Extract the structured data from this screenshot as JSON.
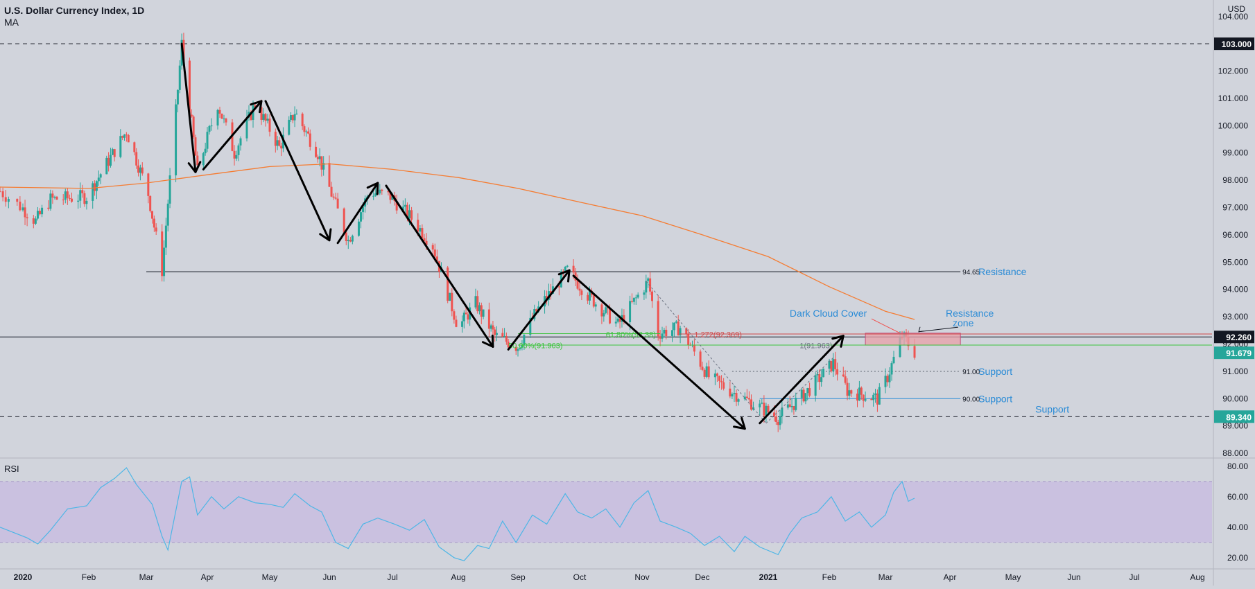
{
  "header": {
    "title": "U.S. Dollar Currency Index, 1D",
    "indicator": "MA",
    "currency": "USD"
  },
  "colors": {
    "background": "#d1d4dc",
    "up": "#26a69a",
    "down": "#ef5350",
    "ma": "#f57c32",
    "rsi_line": "#4db6e6",
    "rsi_band": "#c9bde0",
    "annotation_blue": "#2a8bd6",
    "fib_green": "#3cc43c",
    "fib_red": "#d04848",
    "resistance_zone": "#e8a0a8"
  },
  "chart_data": [
    {
      "type": "candlestick",
      "title": "U.S. Dollar Currency Index, 1D",
      "y_axis": {
        "ylim": [
          87.9,
          104.4
        ],
        "tick_labels": [
          "104.000",
          "103.000",
          "102.000",
          "101.000",
          "100.000",
          "99.000",
          "98.000",
          "97.000",
          "96.000",
          "95.000",
          "94.000",
          "93.000",
          "92.000",
          "91.000",
          "90.000",
          "89.000",
          "88.000"
        ],
        "ticks": [
          104,
          103,
          102,
          101,
          100,
          99,
          98,
          97,
          96,
          95,
          94,
          93,
          92,
          91,
          90,
          89,
          88
        ]
      },
      "x_axis": {
        "tick_labels": [
          "2020",
          "Feb",
          "Mar",
          "Apr",
          "May",
          "Jun",
          "Jul",
          "Aug",
          "Sep",
          "Oct",
          "Nov",
          "Dec",
          "2021",
          "Feb",
          "Mar",
          "Apr",
          "May",
          "Jun",
          "Jul",
          "Aug"
        ],
        "tick_dates": [
          "2020-01-01",
          "2020-02-01",
          "2020-03-01",
          "2020-04-01",
          "2020-05-01",
          "2020-06-01",
          "2020-07-01",
          "2020-08-01",
          "2020-09-01",
          "2020-10-01",
          "2020-11-01",
          "2020-12-01",
          "2021-01-01",
          "2021-02-01",
          "2021-03-01",
          "2021-04-01",
          "2021-05-01",
          "2021-06-01",
          "2021-07-01",
          "2021-08-01"
        ]
      },
      "price_path": [
        [
          "2019-12-24",
          97.6
        ],
        [
          "2020-01-07",
          96.5
        ],
        [
          "2020-01-14",
          97.3
        ],
        [
          "2020-01-31",
          97.4
        ],
        [
          "2020-02-20",
          99.8
        ],
        [
          "2020-03-02",
          97.5
        ],
        [
          "2020-03-09",
          94.7
        ],
        [
          "2020-03-19",
          103.0
        ],
        [
          "2020-03-27",
          98.3
        ],
        [
          "2020-04-06",
          100.8
        ],
        [
          "2020-04-14",
          99.0
        ],
        [
          "2020-04-24",
          100.8
        ],
        [
          "2020-05-06",
          99.2
        ],
        [
          "2020-05-14",
          100.5
        ],
        [
          "2020-05-26",
          99.0
        ],
        [
          "2020-06-10",
          95.8
        ],
        [
          "2020-06-20",
          97.6
        ],
        [
          "2020-06-30",
          97.4
        ],
        [
          "2020-07-10",
          96.6
        ],
        [
          "2020-07-20",
          95.6
        ],
        [
          "2020-08-01",
          92.6
        ],
        [
          "2020-08-10",
          93.5
        ],
        [
          "2020-08-20",
          92.3
        ],
        [
          "2020-09-01",
          91.9
        ],
        [
          "2020-09-10",
          93.2
        ],
        [
          "2020-09-25",
          94.7
        ],
        [
          "2020-10-05",
          93.8
        ],
        [
          "2020-10-20",
          92.7
        ],
        [
          "2020-11-04",
          94.3
        ],
        [
          "2020-11-09",
          92.4
        ],
        [
          "2020-11-20",
          92.6
        ],
        [
          "2020-12-04",
          90.8
        ],
        [
          "2020-12-16",
          90.2
        ],
        [
          "2021-01-06",
          89.3
        ],
        [
          "2021-01-20",
          90.2
        ],
        [
          "2021-02-03",
          91.3
        ],
        [
          "2021-02-10",
          90.3
        ],
        [
          "2021-02-25",
          90.0
        ],
        [
          "2021-03-02",
          90.8
        ],
        [
          "2021-03-09",
          92.3
        ],
        [
          "2021-03-15",
          91.7
        ]
      ],
      "moving_average": [
        [
          "2019-12-24",
          97.75
        ],
        [
          "2020-02-01",
          97.7
        ],
        [
          "2020-03-01",
          97.9
        ],
        [
          "2020-04-01",
          98.2
        ],
        [
          "2020-05-01",
          98.5
        ],
        [
          "2020-06-01",
          98.6
        ],
        [
          "2020-07-01",
          98.4
        ],
        [
          "2020-08-01",
          98.1
        ],
        [
          "2020-09-01",
          97.7
        ],
        [
          "2020-10-01",
          97.2
        ],
        [
          "2020-11-01",
          96.7
        ],
        [
          "2020-12-01",
          96.0
        ],
        [
          "2021-01-01",
          95.2
        ],
        [
          "2021-02-01",
          94.1
        ],
        [
          "2021-03-01",
          93.2
        ],
        [
          "2021-03-15",
          92.9
        ]
      ],
      "horizontal_levels": [
        {
          "value": 103.0,
          "style": "dashed",
          "label": "103.000"
        },
        {
          "value": 94.65,
          "style": "solid",
          "from": "2020-03-01",
          "to": "2021-04-06",
          "label": "94.65",
          "note": "Resistance"
        },
        {
          "value": 92.26,
          "style": "solid",
          "label": "92.260"
        },
        {
          "value": 91.0,
          "style": "dotted",
          "from": "2020-12-15",
          "to": "2021-04-06",
          "label": "91.00",
          "note": "Support"
        },
        {
          "value": 90.0,
          "style": "solid-blue",
          "from": "2020-12-28",
          "to": "2021-04-06",
          "label": "90.00",
          "note": "Support"
        },
        {
          "value": 89.34,
          "style": "dashed",
          "label": "89.340"
        }
      ],
      "price_badges": [
        {
          "value": 103.0,
          "label": "103.000"
        },
        {
          "value": 92.26,
          "label": "92.260"
        },
        {
          "value": 91.679,
          "label": "91.679"
        },
        {
          "value": 89.34,
          "label": "89.340"
        }
      ],
      "fib_labels": {
        "fib_618": "61.80%(92.38)",
        "fib_500": "50.00%(91.963)",
        "ext_1272": "1.272(92.369)",
        "ext_1": "1(91.963)"
      },
      "annotations": {
        "dark_cloud": "Dark Cloud Cover",
        "resistance_zone": "Resistance\nzone",
        "resistance": "Resistance",
        "support_91": "Support",
        "support_90": "Support",
        "support_low": "Support"
      },
      "resistance_zone": {
        "from": "2021-02-19",
        "to": "2021-04-06",
        "y_top": 92.4,
        "y_bottom": 91.96
      },
      "trend_arrows": [
        [
          [
            "2020-03-19",
            103.0
          ],
          [
            "2020-03-26",
            98.3
          ]
        ],
        [
          [
            "2020-03-30",
            98.4
          ],
          [
            "2020-04-27",
            100.9
          ]
        ],
        [
          [
            "2020-04-29",
            100.9
          ],
          [
            "2020-06-01",
            95.8
          ]
        ],
        [
          [
            "2020-06-05",
            95.7
          ],
          [
            "2020-06-24",
            97.9
          ]
        ],
        [
          [
            "2020-06-28",
            97.8
          ],
          [
            "2020-08-19",
            91.9
          ]
        ],
        [
          [
            "2020-08-27",
            91.8
          ],
          [
            "2020-09-26",
            94.7
          ]
        ],
        [
          [
            "2020-09-28",
            94.5
          ],
          [
            "2020-12-21",
            88.9
          ]
        ],
        [
          [
            "2020-12-28",
            89.1
          ],
          [
            "2021-02-08",
            92.3
          ]
        ]
      ]
    },
    {
      "type": "line",
      "title": "RSI",
      "ylim": [
        14,
        84
      ],
      "tick_labels": [
        "80.00",
        "60.00",
        "40.00",
        "20.00"
      ],
      "ticks": [
        80,
        60,
        40,
        20
      ],
      "band": [
        30,
        70
      ],
      "values": [
        [
          "2019-12-24",
          40
        ],
        [
          "2020-01-03",
          33
        ],
        [
          "2020-01-08",
          29
        ],
        [
          "2020-01-14",
          38
        ],
        [
          "2020-01-22",
          52
        ],
        [
          "2020-01-31",
          54
        ],
        [
          "2020-02-07",
          66
        ],
        [
          "2020-02-14",
          72
        ],
        [
          "2020-02-20",
          79
        ],
        [
          "2020-02-25",
          68
        ],
        [
          "2020-03-04",
          55
        ],
        [
          "2020-03-09",
          34
        ],
        [
          "2020-03-12",
          25
        ],
        [
          "2020-03-19",
          70
        ],
        [
          "2020-03-23",
          73
        ],
        [
          "2020-03-27",
          48
        ],
        [
          "2020-04-03",
          60
        ],
        [
          "2020-04-09",
          52
        ],
        [
          "2020-04-16",
          60
        ],
        [
          "2020-04-24",
          56
        ],
        [
          "2020-05-01",
          55
        ],
        [
          "2020-05-08",
          53
        ],
        [
          "2020-05-14",
          62
        ],
        [
          "2020-05-22",
          54
        ],
        [
          "2020-05-28",
          50
        ],
        [
          "2020-06-04",
          30
        ],
        [
          "2020-06-10",
          26
        ],
        [
          "2020-06-17",
          42
        ],
        [
          "2020-06-24",
          46
        ],
        [
          "2020-07-02",
          42
        ],
        [
          "2020-07-09",
          38
        ],
        [
          "2020-07-16",
          45
        ],
        [
          "2020-07-23",
          27
        ],
        [
          "2020-07-30",
          20
        ],
        [
          "2020-08-04",
          18
        ],
        [
          "2020-08-11",
          28
        ],
        [
          "2020-08-17",
          26
        ],
        [
          "2020-08-24",
          44
        ],
        [
          "2020-08-31",
          30
        ],
        [
          "2020-09-08",
          48
        ],
        [
          "2020-09-15",
          42
        ],
        [
          "2020-09-24",
          62
        ],
        [
          "2020-09-30",
          50
        ],
        [
          "2020-10-07",
          46
        ],
        [
          "2020-10-14",
          52
        ],
        [
          "2020-10-21",
          40
        ],
        [
          "2020-10-28",
          56
        ],
        [
          "2020-11-04",
          64
        ],
        [
          "2020-11-10",
          44
        ],
        [
          "2020-11-18",
          40
        ],
        [
          "2020-11-25",
          36
        ],
        [
          "2020-12-02",
          28
        ],
        [
          "2020-12-09",
          34
        ],
        [
          "2020-12-16",
          24
        ],
        [
          "2020-12-21",
          34
        ],
        [
          "2020-12-28",
          27
        ],
        [
          "2021-01-06",
          22
        ],
        [
          "2021-01-12",
          36
        ],
        [
          "2021-01-18",
          46
        ],
        [
          "2021-01-26",
          50
        ],
        [
          "2021-02-02",
          60
        ],
        [
          "2021-02-09",
          44
        ],
        [
          "2021-02-16",
          50
        ],
        [
          "2021-02-22",
          40
        ],
        [
          "2021-03-01",
          48
        ],
        [
          "2021-03-05",
          63
        ],
        [
          "2021-03-09",
          70
        ],
        [
          "2021-03-12",
          57
        ],
        [
          "2021-03-15",
          59
        ]
      ]
    }
  ]
}
